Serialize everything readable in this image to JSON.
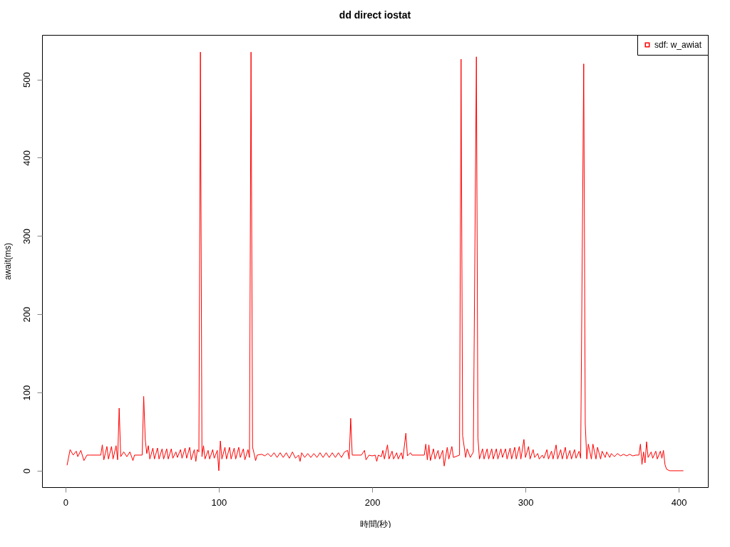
{
  "chart_data": {
    "type": "line",
    "title": "dd direct iostat",
    "xlabel": "時間(秒)",
    "ylabel": "await(ms)",
    "xlim": [
      -15.3,
      419
    ],
    "ylim": [
      -21,
      557
    ],
    "xticks": [
      0,
      100,
      200,
      300,
      400
    ],
    "yticks": [
      0,
      100,
      200,
      300,
      400,
      500
    ],
    "grid": false,
    "legend": "top right",
    "marker": "none",
    "line_style": "solid",
    "series": [
      {
        "name": "sdf: w_awiat",
        "color": "#ff0000",
        "x": [
          1,
          3,
          5,
          7,
          8,
          10,
          12,
          14,
          16,
          23,
          24,
          25,
          27,
          28,
          30,
          31,
          33,
          34,
          35,
          36,
          38,
          40,
          42,
          44,
          45,
          50,
          51,
          52,
          53,
          54,
          55,
          57,
          58,
          60,
          61,
          63,
          64,
          66,
          67,
          69,
          70,
          72,
          73,
          75,
          76,
          78,
          79,
          81,
          82,
          84,
          85,
          86,
          87,
          88,
          89,
          90,
          91,
          93,
          94,
          96,
          97,
          99,
          100,
          101,
          102,
          104,
          105,
          107,
          108,
          110,
          111,
          113,
          114,
          116,
          117,
          119,
          120,
          121,
          122,
          123,
          124,
          125,
          128,
          130,
          132,
          134,
          136,
          138,
          140,
          142,
          144,
          146,
          148,
          150,
          152,
          153,
          154,
          156,
          158,
          160,
          162,
          164,
          166,
          168,
          170,
          172,
          174,
          176,
          178,
          180,
          182,
          184,
          185,
          186,
          187,
          193,
          195,
          196,
          198,
          200,
          202,
          203,
          204,
          206,
          207,
          208,
          210,
          211,
          213,
          214,
          216,
          217,
          219,
          220,
          222,
          223,
          225,
          226,
          234,
          235,
          236,
          237,
          238,
          240,
          241,
          243,
          244,
          246,
          247,
          249,
          250,
          252,
          253,
          257,
          258,
          259,
          261,
          262,
          264,
          266,
          268,
          269,
          270,
          272,
          273,
          275,
          276,
          278,
          279,
          281,
          282,
          284,
          285,
          287,
          288,
          290,
          291,
          293,
          294,
          296,
          297,
          299,
          300,
          302,
          303,
          305,
          306,
          308,
          309,
          311,
          312,
          314,
          315,
          317,
          318,
          320,
          321,
          323,
          324,
          326,
          327,
          329,
          330,
          332,
          333,
          335,
          336,
          338,
          339,
          340,
          341,
          343,
          344,
          346,
          347,
          349,
          350,
          352,
          353,
          355,
          356,
          358,
          360,
          362,
          364,
          366,
          368,
          370,
          372,
          374,
          375,
          376,
          377,
          378,
          379,
          380,
          382,
          383,
          385,
          386,
          388,
          389,
          390,
          391,
          392,
          394,
          403
        ],
        "values": [
          7,
          27,
          20,
          25,
          18,
          26,
          13,
          20,
          20,
          20,
          33,
          14,
          31,
          15,
          31,
          15,
          32,
          14,
          80,
          18,
          24,
          18,
          24,
          13,
          20,
          20,
          95,
          40,
          22,
          32,
          15,
          29,
          15,
          29,
          15,
          28,
          15,
          28,
          15,
          28,
          16,
          24,
          17,
          27,
          16,
          29,
          16,
          30,
          14,
          27,
          12,
          27,
          24,
          535,
          18,
          32,
          15,
          26,
          15,
          27,
          16,
          26,
          0,
          38,
          15,
          30,
          15,
          30,
          15,
          29,
          15,
          30,
          17,
          28,
          14,
          27,
          17,
          535,
          30,
          22,
          13,
          20,
          21,
          19,
          22,
          18,
          23,
          17,
          23,
          17,
          23,
          16,
          24,
          16,
          20,
          12,
          23,
          17,
          22,
          17,
          22,
          17,
          23,
          17,
          23,
          17,
          23,
          17,
          23,
          17,
          24,
          26,
          15,
          67,
          20,
          20,
          26,
          14,
          20,
          19,
          20,
          12,
          20,
          18,
          26,
          15,
          33,
          15,
          25,
          15,
          23,
          15,
          23,
          15,
          48,
          19,
          23,
          20,
          20,
          34,
          14,
          33,
          13,
          28,
          15,
          26,
          15,
          26,
          6,
          30,
          15,
          31,
          17,
          20,
          526,
          45,
          17,
          28,
          17,
          24,
          529,
          42,
          15,
          28,
          15,
          28,
          15,
          28,
          15,
          28,
          15,
          28,
          17,
          28,
          15,
          29,
          15,
          30,
          15,
          31,
          15,
          40,
          17,
          31,
          15,
          27,
          17,
          22,
          15,
          20,
          16,
          27,
          15,
          25,
          15,
          33,
          15,
          27,
          15,
          30,
          15,
          26,
          15,
          27,
          16,
          25,
          16,
          520,
          60,
          15,
          34,
          15,
          34,
          15,
          30,
          15,
          25,
          17,
          24,
          17,
          22,
          18,
          22,
          19,
          21,
          19,
          21,
          19,
          20,
          20,
          34,
          8,
          24,
          10,
          37,
          17,
          24,
          16,
          25,
          15,
          25,
          16,
          26,
          8,
          2,
          0,
          0
        ]
      }
    ]
  }
}
